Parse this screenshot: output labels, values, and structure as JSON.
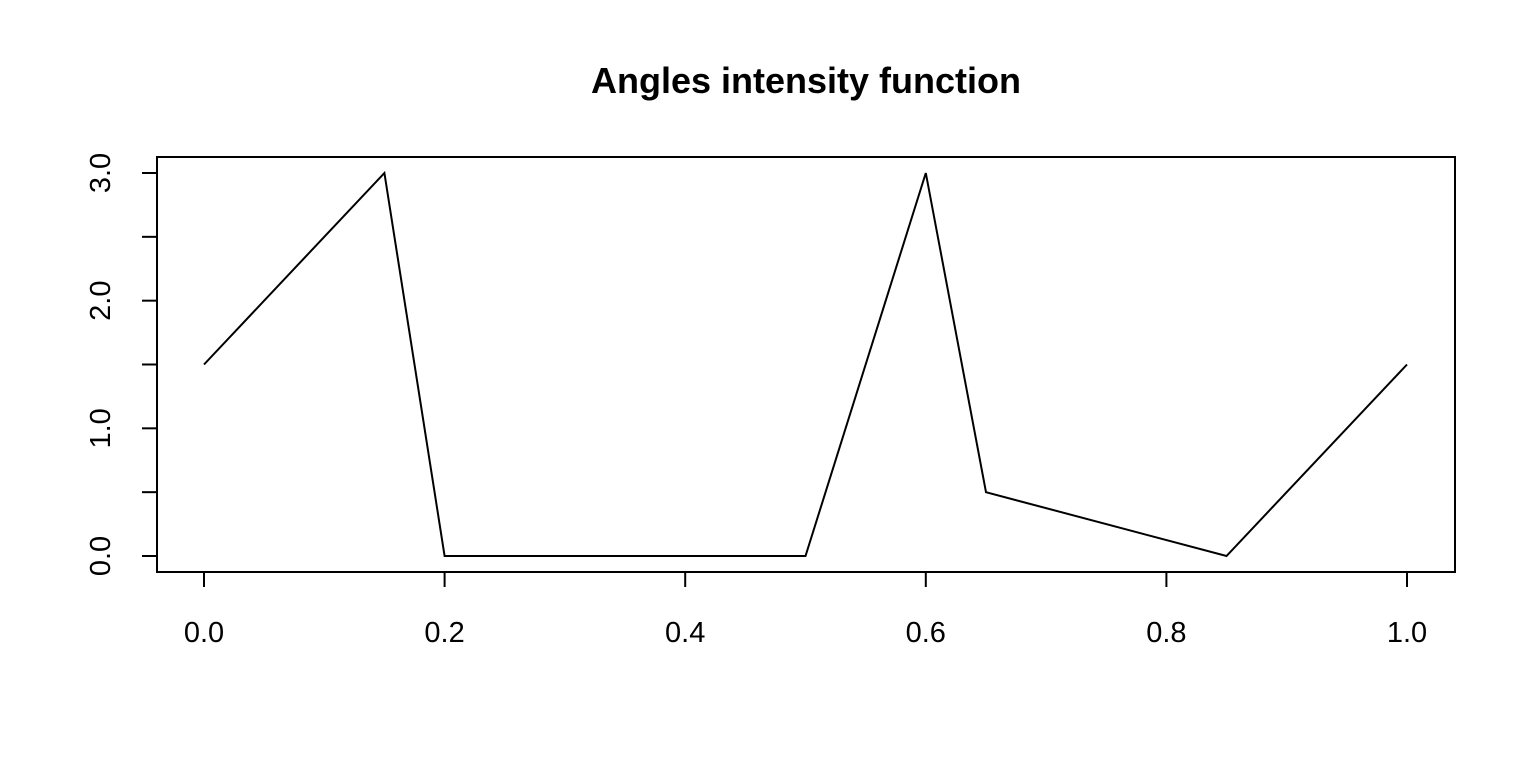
{
  "chart_data": {
    "type": "line",
    "title": "Angles intensity function",
    "xlabel": "",
    "ylabel": "",
    "xlim": [
      0,
      1
    ],
    "ylim": [
      0,
      3
    ],
    "x_ticks": [
      0.0,
      0.2,
      0.4,
      0.6,
      0.8,
      1.0
    ],
    "x_tick_labels": [
      "0.0",
      "0.2",
      "0.4",
      "0.6",
      "0.8",
      "1.0"
    ],
    "y_ticks": [
      0.0,
      0.5,
      1.0,
      1.5,
      2.0,
      2.5,
      3.0
    ],
    "y_tick_labels": [
      "0.0",
      "",
      "1.0",
      "",
      "2.0",
      "",
      "3.0"
    ],
    "grid": false,
    "series": [
      {
        "x": [
          0.0,
          0.15,
          0.2,
          0.5,
          0.6,
          0.65,
          0.85,
          1.0
        ],
        "y": [
          1.5,
          3.0,
          0.0,
          0.0,
          3.0,
          0.5,
          0.0,
          1.5
        ]
      }
    ]
  }
}
